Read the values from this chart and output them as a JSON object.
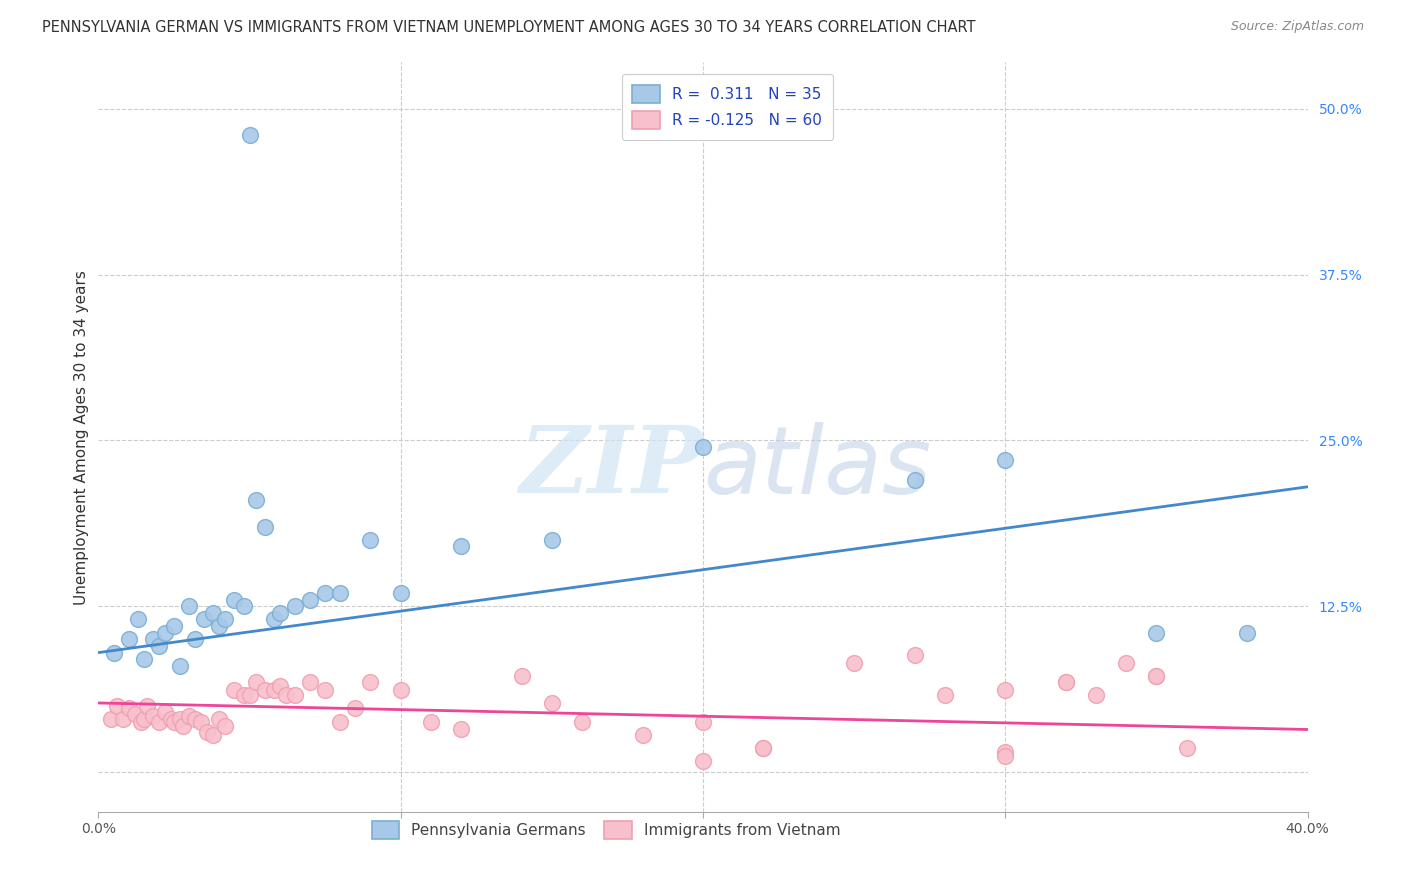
{
  "title": "PENNSYLVANIA GERMAN VS IMMIGRANTS FROM VIETNAM UNEMPLOYMENT AMONG AGES 30 TO 34 YEARS CORRELATION CHART",
  "source": "Source: ZipAtlas.com",
  "ylabel": "Unemployment Among Ages 30 to 34 years",
  "x_min": 0.0,
  "x_max": 0.4,
  "y_min": -0.03,
  "y_max": 0.535,
  "blue_R": 0.311,
  "blue_N": 35,
  "pink_R": -0.125,
  "pink_N": 60,
  "blue_scatter_color": "#a8c8e8",
  "blue_edge_color": "#7aafd4",
  "pink_scatter_color": "#f8c0cc",
  "pink_edge_color": "#f0a0b0",
  "blue_line_color": "#4488cc",
  "pink_line_color": "#ee4499",
  "blue_line_start_y": 0.09,
  "blue_line_end_y": 0.215,
  "pink_line_start_y": 0.052,
  "pink_line_end_y": 0.032,
  "watermark_color": "#d0e4f4",
  "grid_color": "#cccccc",
  "y_tick_vals": [
    0.0,
    0.125,
    0.25,
    0.375,
    0.5
  ],
  "y_tick_labels": [
    "",
    "12.5%",
    "25.0%",
    "37.5%",
    "50.0%"
  ],
  "x_tick_vals": [
    0.0,
    0.1,
    0.2,
    0.3,
    0.4
  ],
  "x_tick_labels": [
    "0.0%",
    "",
    "",
    "",
    "40.0%"
  ],
  "blue_scatter_x": [
    0.005,
    0.01,
    0.013,
    0.015,
    0.018,
    0.02,
    0.022,
    0.025,
    0.027,
    0.03,
    0.032,
    0.035,
    0.038,
    0.04,
    0.042,
    0.045,
    0.048,
    0.05,
    0.052,
    0.055,
    0.058,
    0.06,
    0.065,
    0.07,
    0.075,
    0.08,
    0.09,
    0.1,
    0.12,
    0.15,
    0.2,
    0.27,
    0.3,
    0.35,
    0.38
  ],
  "blue_scatter_y": [
    0.09,
    0.1,
    0.115,
    0.085,
    0.1,
    0.095,
    0.105,
    0.11,
    0.08,
    0.125,
    0.1,
    0.115,
    0.12,
    0.11,
    0.115,
    0.13,
    0.125,
    0.48,
    0.205,
    0.185,
    0.115,
    0.12,
    0.125,
    0.13,
    0.135,
    0.135,
    0.175,
    0.135,
    0.17,
    0.175,
    0.245,
    0.22,
    0.235,
    0.105,
    0.105
  ],
  "pink_scatter_x": [
    0.004,
    0.006,
    0.008,
    0.01,
    0.012,
    0.014,
    0.015,
    0.016,
    0.018,
    0.02,
    0.022,
    0.024,
    0.025,
    0.027,
    0.028,
    0.03,
    0.032,
    0.034,
    0.036,
    0.038,
    0.04,
    0.042,
    0.045,
    0.048,
    0.05,
    0.052,
    0.055,
    0.058,
    0.06,
    0.062,
    0.065,
    0.07,
    0.075,
    0.08,
    0.085,
    0.09,
    0.1,
    0.11,
    0.12,
    0.14,
    0.15,
    0.16,
    0.18,
    0.2,
    0.22,
    0.25,
    0.27,
    0.3,
    0.32,
    0.33,
    0.35,
    0.36,
    0.28,
    0.3,
    0.32,
    0.34,
    0.2,
    0.22,
    0.3,
    0.35
  ],
  "pink_scatter_y": [
    0.04,
    0.05,
    0.04,
    0.048,
    0.044,
    0.038,
    0.04,
    0.05,
    0.042,
    0.038,
    0.045,
    0.04,
    0.038,
    0.04,
    0.035,
    0.042,
    0.04,
    0.038,
    0.03,
    0.028,
    0.04,
    0.035,
    0.062,
    0.058,
    0.058,
    0.068,
    0.062,
    0.062,
    0.065,
    0.058,
    0.058,
    0.068,
    0.062,
    0.038,
    0.048,
    0.068,
    0.062,
    0.038,
    0.032,
    0.072,
    0.052,
    0.038,
    0.028,
    0.038,
    0.018,
    0.082,
    0.088,
    0.062,
    0.068,
    0.058,
    0.072,
    0.018,
    0.058,
    0.015,
    0.068,
    0.082,
    0.008,
    0.018,
    0.012,
    0.072
  ],
  "title_fontsize": 10.5,
  "source_fontsize": 9,
  "ylabel_fontsize": 11,
  "tick_fontsize": 10,
  "legend_fontsize": 11
}
